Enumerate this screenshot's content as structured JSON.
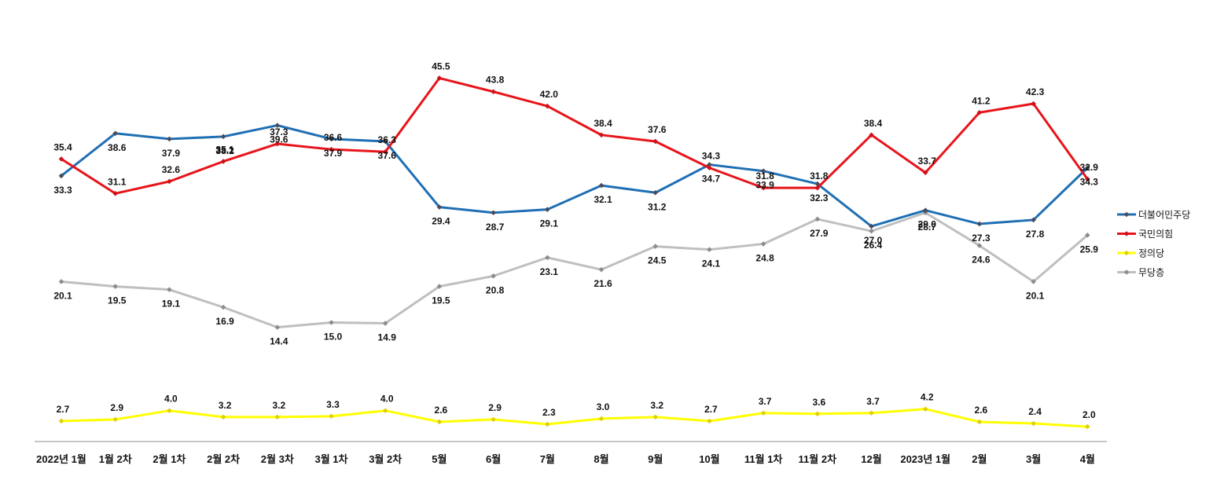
{
  "chart_data": {
    "type": "line",
    "title": "",
    "xlabel": "",
    "ylabel": "",
    "ylim": [
      0,
      50
    ],
    "grid": false,
    "legend_position": "right",
    "categories": [
      "2022년 1월",
      "1월 2차",
      "2월 1차",
      "2월 2차",
      "2월 3차",
      "3월 1차",
      "3월 2차",
      "5월",
      "6월",
      "7월",
      "8월",
      "9월",
      "10월",
      "11월 1차",
      "11월 2차",
      "12월",
      "2023년 1월",
      "2월",
      "3월",
      "4월"
    ],
    "series": [
      {
        "name": "더불어민주당",
        "color": "#1f6fb4",
        "marker_color": "#4a4a5a",
        "label_position": "below",
        "values": [
          33.3,
          38.6,
          37.9,
          38.2,
          39.6,
          37.9,
          37.6,
          29.4,
          28.7,
          29.1,
          32.1,
          31.2,
          34.7,
          33.9,
          32.3,
          27.0,
          29.0,
          27.3,
          27.8,
          34.3
        ]
      },
      {
        "name": "국민의힘",
        "color": "#e8141b",
        "marker_color": "#d01018",
        "label_position": "above",
        "values": [
          35.4,
          31.1,
          32.6,
          35.1,
          37.3,
          36.6,
          36.3,
          45.5,
          43.8,
          42.0,
          38.4,
          37.6,
          34.3,
          31.8,
          31.8,
          38.4,
          33.7,
          41.2,
          42.3,
          32.9
        ]
      },
      {
        "name": "정의당",
        "color": "#ffff00",
        "marker_color": "#e0d000",
        "label_position": "above",
        "values": [
          2.7,
          2.9,
          4.0,
          3.2,
          3.2,
          3.3,
          4.0,
          2.6,
          2.9,
          2.3,
          3.0,
          3.2,
          2.7,
          3.7,
          3.6,
          3.7,
          4.2,
          2.6,
          2.4,
          2.0
        ]
      },
      {
        "name": "무당층",
        "color": "#bfbfbf",
        "marker_color": "#8c8c8c",
        "label_position": "below",
        "values": [
          20.1,
          19.5,
          19.1,
          16.9,
          14.4,
          15.0,
          14.9,
          19.5,
          20.8,
          23.1,
          21.6,
          24.5,
          24.1,
          24.8,
          27.9,
          26.4,
          28.7,
          24.6,
          20.1,
          25.9
        ]
      }
    ]
  }
}
